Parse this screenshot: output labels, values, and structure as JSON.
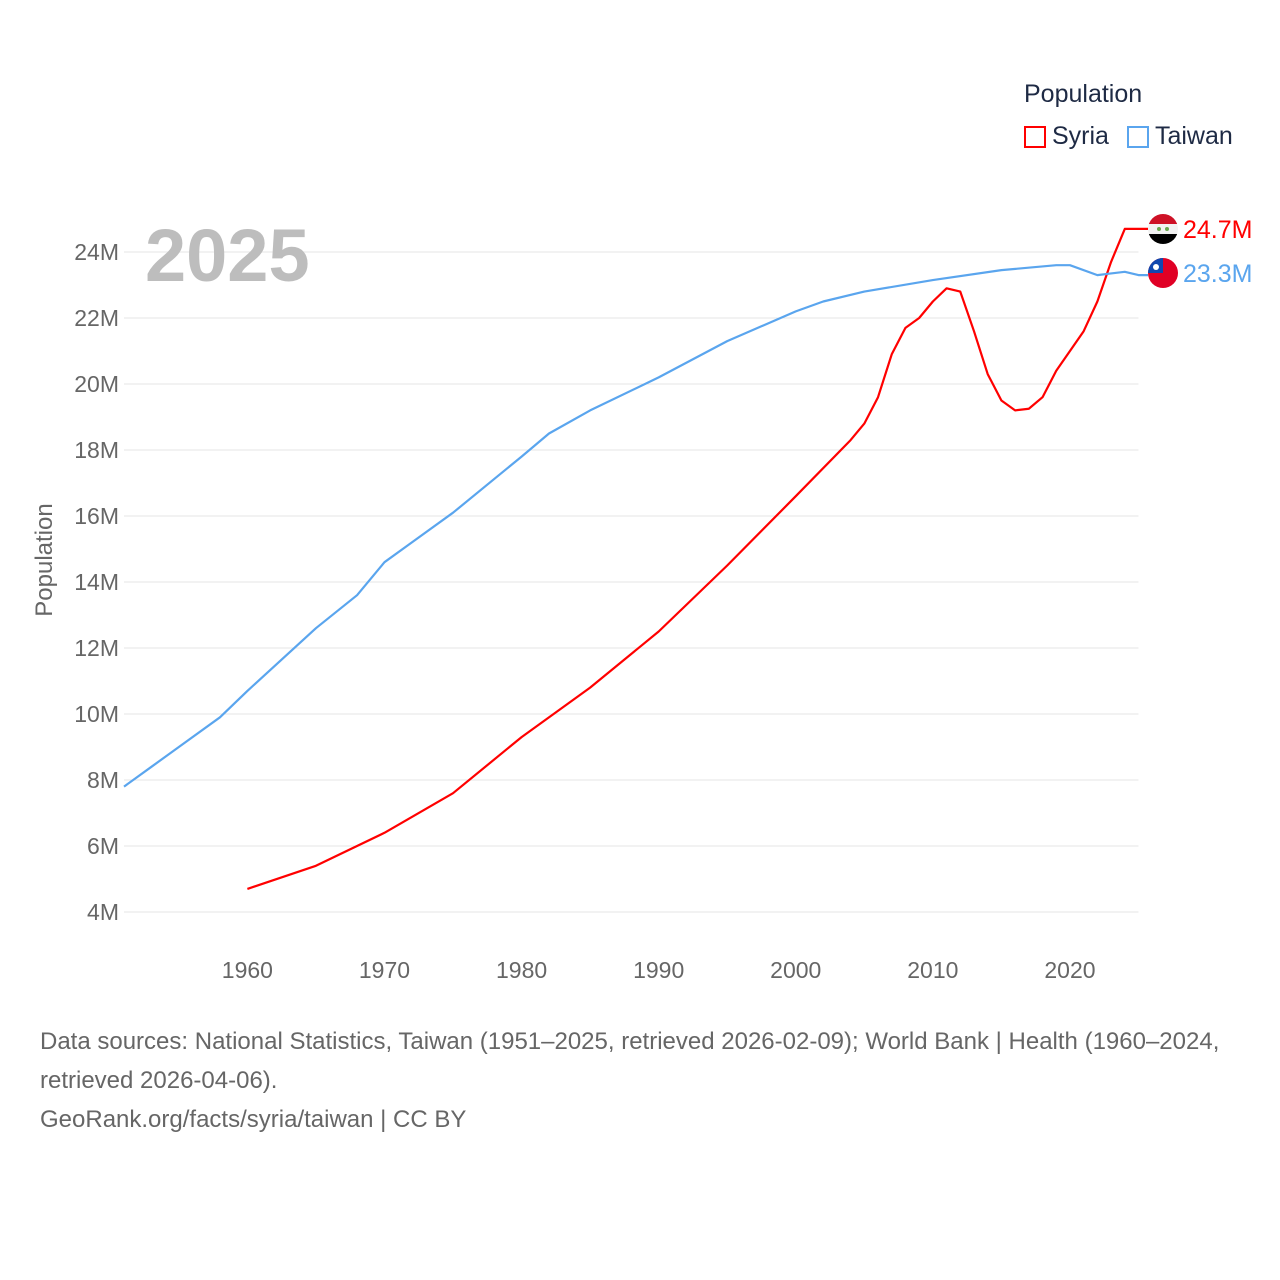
{
  "chart_data": {
    "type": "line",
    "title": "",
    "year_label": "2025",
    "ylabel": "Population",
    "legend_title": "Population",
    "legend_placement": "top-right",
    "xlim": [
      1951,
      2025
    ],
    "ylim": [
      4000000,
      24000000
    ],
    "x_ticks": [
      "1960",
      "1970",
      "1980",
      "1990",
      "2000",
      "2010",
      "2020"
    ],
    "y_ticks": [
      "4M",
      "6M",
      "8M",
      "10M",
      "12M",
      "14M",
      "16M",
      "18M",
      "20M",
      "22M",
      "24M"
    ],
    "grid": true,
    "series": [
      {
        "name": "Syria",
        "color": "#ff0000",
        "end_label": "24.7M",
        "flag": "syria-flag",
        "points": [
          [
            1960,
            4.7
          ],
          [
            1965,
            5.4
          ],
          [
            1970,
            6.4
          ],
          [
            1975,
            7.6
          ],
          [
            1980,
            9.3
          ],
          [
            1985,
            10.8
          ],
          [
            1990,
            12.5
          ],
          [
            1995,
            14.5
          ],
          [
            2000,
            16.6
          ],
          [
            2004,
            18.3
          ],
          [
            2005,
            18.8
          ],
          [
            2006,
            19.6
          ],
          [
            2007,
            20.9
          ],
          [
            2008,
            21.7
          ],
          [
            2009,
            22.0
          ],
          [
            2010,
            22.5
          ],
          [
            2011,
            22.9
          ],
          [
            2012,
            22.8
          ],
          [
            2013,
            21.6
          ],
          [
            2014,
            20.3
          ],
          [
            2015,
            19.5
          ],
          [
            2016,
            19.2
          ],
          [
            2017,
            19.25
          ],
          [
            2018,
            19.6
          ],
          [
            2019,
            20.4
          ],
          [
            2020,
            21.0
          ],
          [
            2021,
            21.6
          ],
          [
            2022,
            22.5
          ],
          [
            2023,
            23.7
          ],
          [
            2024,
            24.7
          ]
        ]
      },
      {
        "name": "Taiwan",
        "color": "#5aa5ee",
        "end_label": "23.3M",
        "flag": "taiwan-flag",
        "points": [
          [
            1951,
            7.8
          ],
          [
            1953,
            8.4
          ],
          [
            1955,
            9.0
          ],
          [
            1958,
            9.9
          ],
          [
            1960,
            10.7
          ],
          [
            1965,
            12.6
          ],
          [
            1968,
            13.6
          ],
          [
            1970,
            14.6
          ],
          [
            1972,
            15.2
          ],
          [
            1975,
            16.1
          ],
          [
            1980,
            17.8
          ],
          [
            1982,
            18.5
          ],
          [
            1985,
            19.2
          ],
          [
            1990,
            20.2
          ],
          [
            1995,
            21.3
          ],
          [
            2000,
            22.2
          ],
          [
            2002,
            22.5
          ],
          [
            2005,
            22.8
          ],
          [
            2010,
            23.15
          ],
          [
            2015,
            23.45
          ],
          [
            2019,
            23.6
          ],
          [
            2020,
            23.6
          ],
          [
            2022,
            23.3
          ],
          [
            2023,
            23.35
          ],
          [
            2024,
            23.4
          ],
          [
            2025,
            23.3
          ]
        ]
      }
    ]
  },
  "footer": {
    "sources": "Data sources: National Statistics, Taiwan (1951–2025, retrieved 2026-02-09); World Bank | Health (1960–2024, retrieved 2026-04-06).",
    "link": "GeoRank.org/facts/syria/taiwan | CC BY"
  }
}
